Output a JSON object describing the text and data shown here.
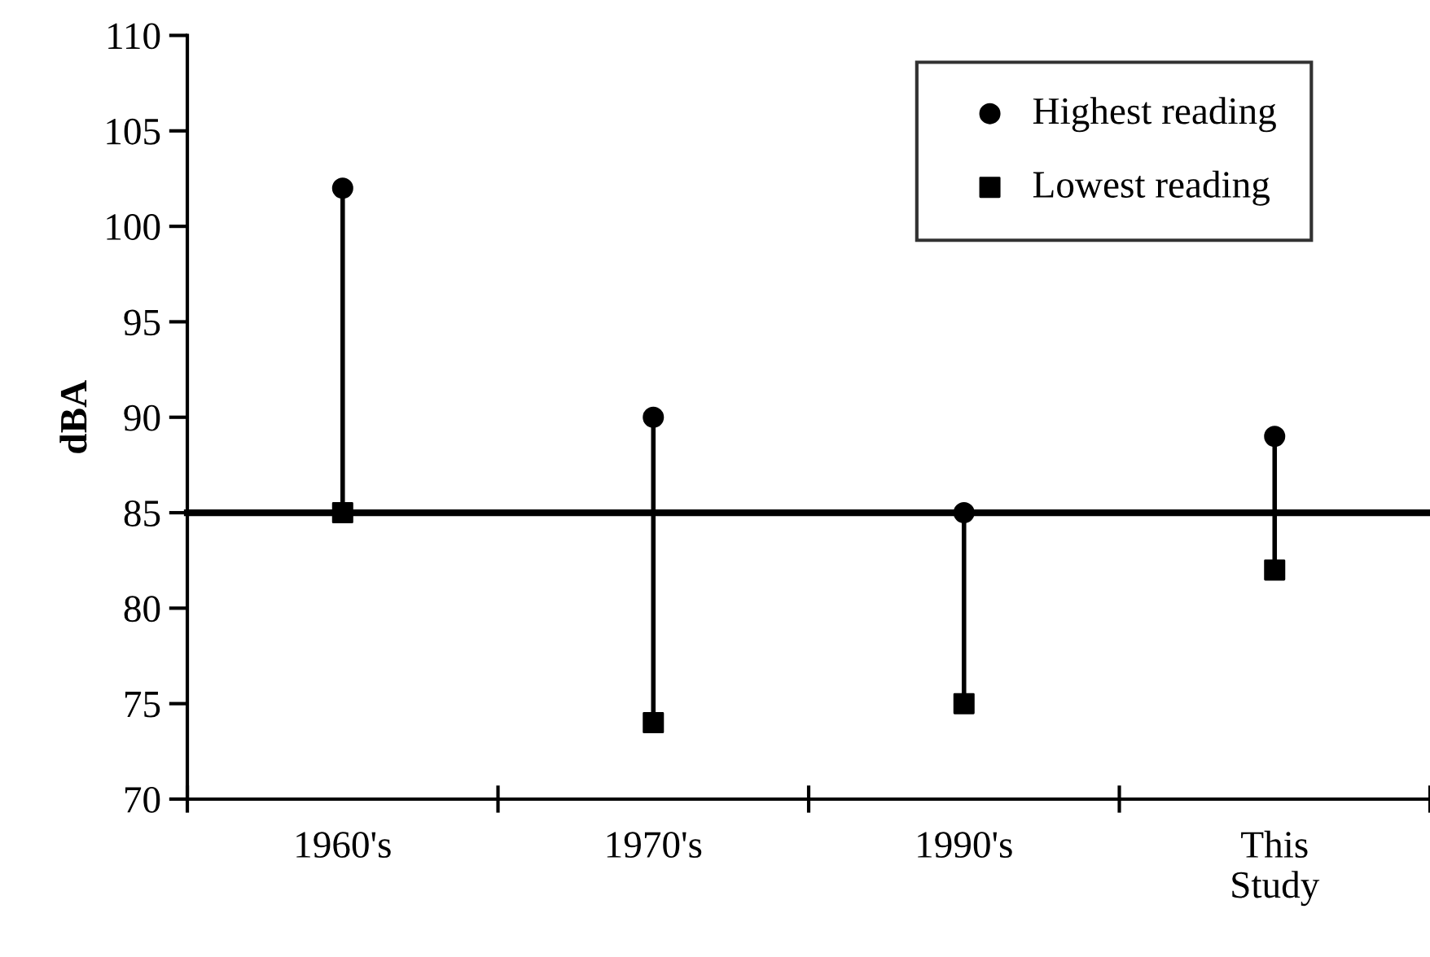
{
  "chart_data": {
    "type": "scatter",
    "ylabel": "dBA",
    "categories": [
      "1960's",
      "1970's",
      "1990's",
      "This\nStudy"
    ],
    "series": [
      {
        "name": "Highest reading",
        "color": "#000000",
        "marker": "circle",
        "values": [
          102,
          90,
          85,
          89
        ]
      },
      {
        "name": "Lowest reading",
        "color": "#000000",
        "marker": "square",
        "values": [
          85,
          74,
          75,
          82
        ]
      }
    ],
    "ylim": [
      70,
      110
    ],
    "yticks": [
      70,
      75,
      80,
      85,
      90,
      95,
      100,
      105,
      110
    ],
    "ref_lines": [
      {
        "axis": "y",
        "value": 85,
        "color": "#000000",
        "line_style": "solid"
      }
    ],
    "grid": false,
    "legend": "top right"
  }
}
